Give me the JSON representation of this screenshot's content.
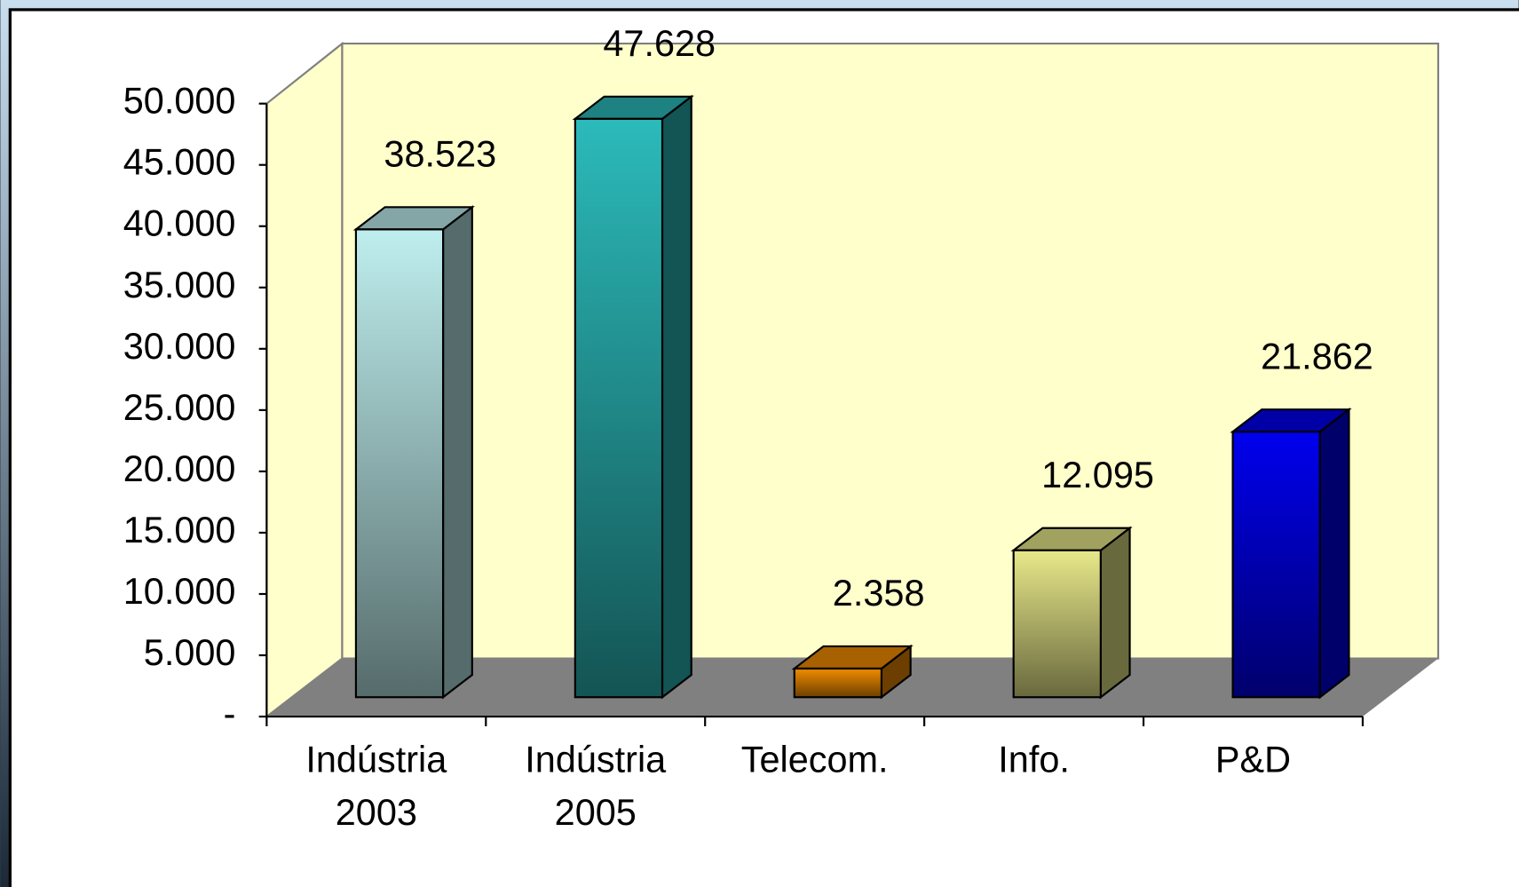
{
  "chart_data": {
    "type": "bar3d",
    "categories": [
      [
        "Indústria",
        "2003"
      ],
      [
        "Indústria",
        "2005"
      ],
      [
        "Telecom."
      ],
      [
        "Info."
      ],
      [
        "P&D"
      ]
    ],
    "values": [
      38523,
      47628,
      2358,
      12095,
      21862
    ],
    "value_labels": [
      "38.523",
      "47.628",
      "2.358",
      "12.095",
      "21.862"
    ],
    "colors": [
      "#bfeeee",
      "#2cbaba",
      "#f08c00",
      "#e8e88a",
      "#0000ee"
    ],
    "ylim": [
      0,
      50000
    ],
    "yticks": [
      {
        "value": 0,
        "label": "-"
      },
      {
        "value": 5000,
        "label": "5.000"
      },
      {
        "value": 10000,
        "label": "10.000"
      },
      {
        "value": 15000,
        "label": "15.000"
      },
      {
        "value": 20000,
        "label": "20.000"
      },
      {
        "value": 25000,
        "label": "25.000"
      },
      {
        "value": 30000,
        "label": "30.000"
      },
      {
        "value": 35000,
        "label": "35.000"
      },
      {
        "value": 40000,
        "label": "40.000"
      },
      {
        "value": 45000,
        "label": "45.000"
      },
      {
        "value": 50000,
        "label": "50.000"
      }
    ],
    "grid": false
  }
}
